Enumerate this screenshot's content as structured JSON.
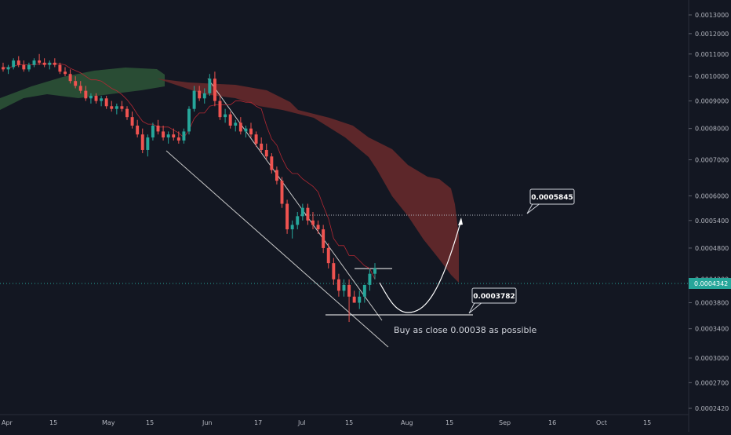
{
  "chart_data": {
    "type": "candlestick",
    "title": "",
    "y_scale": "log",
    "y_ticks": [
      "0.0013000",
      "0.0012000",
      "0.0011000",
      "0.0010000",
      "0.0009000",
      "0.0008000",
      "0.0007000",
      "0.0006000",
      "0.0005400",
      "0.0004800",
      "0.0004200",
      "0.0003800",
      "0.0003400",
      "0.0003000",
      "0.0002700",
      "0.0002420"
    ],
    "x_ticks": [
      "Apr",
      "15",
      "May",
      "15",
      "Jun",
      "17",
      "Jul",
      "15",
      "Aug",
      "15",
      "Sep",
      "16",
      "Oct",
      "15"
    ],
    "last_price": "0.0004342",
    "ohlc": [
      [
        0.00104,
        0.00106,
        0.00102,
        0.00103
      ],
      [
        0.00103,
        0.00105,
        0.00101,
        0.00104
      ],
      [
        0.00104,
        0.00108,
        0.00103,
        0.00107
      ],
      [
        0.00107,
        0.00109,
        0.00104,
        0.00105
      ],
      [
        0.00105,
        0.00107,
        0.00102,
        0.00103
      ],
      [
        0.00103,
        0.00106,
        0.00102,
        0.00105
      ],
      [
        0.00105,
        0.00108,
        0.00104,
        0.00107
      ],
      [
        0.00107,
        0.0011,
        0.00105,
        0.00106
      ],
      [
        0.00106,
        0.00108,
        0.00104,
        0.00105
      ],
      [
        0.00105,
        0.00107,
        0.00103,
        0.00106
      ],
      [
        0.00106,
        0.00108,
        0.00104,
        0.00105
      ],
      [
        0.00105,
        0.00106,
        0.00101,
        0.00102
      ],
      [
        0.00102,
        0.00104,
        0.001,
        0.00101
      ],
      [
        0.00101,
        0.00103,
        0.00097,
        0.00098
      ],
      [
        0.00098,
        0.001,
        0.00095,
        0.00096
      ],
      [
        0.00096,
        0.00098,
        0.00093,
        0.00094
      ],
      [
        0.00094,
        0.00096,
        0.0009,
        0.00091
      ],
      [
        0.00091,
        0.00093,
        0.00089,
        0.00092
      ],
      [
        0.00092,
        0.00093,
        0.00089,
        0.0009
      ],
      [
        0.0009,
        0.00092,
        0.00088,
        0.00091
      ],
      [
        0.00091,
        0.00092,
        0.00087,
        0.00088
      ],
      [
        0.00088,
        0.0009,
        0.00086,
        0.00087
      ],
      [
        0.00087,
        0.00089,
        0.00085,
        0.00088
      ],
      [
        0.00088,
        0.0009,
        0.00086,
        0.00087
      ],
      [
        0.00087,
        0.00088,
        0.00083,
        0.00084
      ],
      [
        0.00084,
        0.00086,
        0.0008,
        0.00081
      ],
      [
        0.00081,
        0.00083,
        0.00077,
        0.00078
      ],
      [
        0.00078,
        0.0008,
        0.00072,
        0.00073
      ],
      [
        0.00073,
        0.00078,
        0.00071,
        0.00077
      ],
      [
        0.00077,
        0.00082,
        0.00076,
        0.00081
      ],
      [
        0.00081,
        0.00083,
        0.00078,
        0.00079
      ],
      [
        0.00079,
        0.00081,
        0.00076,
        0.00077
      ],
      [
        0.00077,
        0.00079,
        0.00075,
        0.00078
      ],
      [
        0.00078,
        0.0008,
        0.00076,
        0.00077
      ],
      [
        0.00077,
        0.00079,
        0.00075,
        0.00076
      ],
      [
        0.00076,
        0.0008,
        0.00075,
        0.00079
      ],
      [
        0.00079,
        0.00088,
        0.00078,
        0.00087
      ],
      [
        0.00087,
        0.00096,
        0.00086,
        0.00094
      ],
      [
        0.00094,
        0.00096,
        0.0009,
        0.00091
      ],
      [
        0.00091,
        0.00095,
        0.00089,
        0.00093
      ],
      [
        0.00093,
        0.00101,
        0.00092,
        0.00099
      ],
      [
        0.00099,
        0.00102,
        0.00088,
        0.0009
      ],
      [
        0.0009,
        0.00092,
        0.00083,
        0.00084
      ],
      [
        0.00084,
        0.00087,
        0.00082,
        0.00085
      ],
      [
        0.00085,
        0.00086,
        0.0008,
        0.00081
      ],
      [
        0.00081,
        0.00083,
        0.00079,
        0.00082
      ],
      [
        0.00082,
        0.00084,
        0.00078,
        0.00079
      ],
      [
        0.00079,
        0.00081,
        0.00077,
        0.0008
      ],
      [
        0.0008,
        0.00082,
        0.00077,
        0.00078
      ],
      [
        0.00078,
        0.00079,
        0.00074,
        0.00075
      ],
      [
        0.00075,
        0.00077,
        0.00072,
        0.00073
      ],
      [
        0.00073,
        0.00075,
        0.0007,
        0.00071
      ],
      [
        0.00071,
        0.00072,
        0.00066,
        0.00067
      ],
      [
        0.00067,
        0.00068,
        0.00063,
        0.00064
      ],
      [
        0.00064,
        0.00065,
        0.00057,
        0.00058
      ],
      [
        0.00058,
        0.00059,
        0.00051,
        0.00052
      ],
      [
        0.00052,
        0.00054,
        0.0005,
        0.00053
      ],
      [
        0.00053,
        0.00056,
        0.00052,
        0.00055
      ],
      [
        0.00055,
        0.00058,
        0.00054,
        0.00057
      ],
      [
        0.00057,
        0.00058,
        0.00053,
        0.00054
      ],
      [
        0.00054,
        0.00056,
        0.00052,
        0.00053
      ],
      [
        0.00053,
        0.00054,
        0.00051,
        0.00052
      ],
      [
        0.00052,
        0.00053,
        0.00047,
        0.00048
      ],
      [
        0.00048,
        0.00049,
        0.00044,
        0.00045
      ],
      [
        0.00045,
        0.00046,
        0.00041,
        0.00042
      ],
      [
        0.00042,
        0.00043,
        0.00039,
        0.0004
      ],
      [
        0.0004,
        0.00042,
        0.00039,
        0.00041
      ],
      [
        0.00041,
        0.00042,
        0.00035,
        0.00039
      ],
      [
        0.00039,
        0.0004,
        0.00038,
        0.00038
      ],
      [
        0.00038,
        0.0004,
        0.00037,
        0.00039
      ],
      [
        0.00039,
        0.00041,
        0.00038,
        0.00041
      ],
      [
        0.00041,
        0.00044,
        0.0004,
        0.00043
      ],
      [
        0.00043,
        0.00045,
        0.00042,
        0.00044
      ]
    ],
    "annotations": {
      "target_label": "0.0005845",
      "support_label": "0.0003782",
      "note": "Buy as close 0.00038 as possible"
    }
  },
  "colors": {
    "background": "#131722",
    "up": "#26a69a",
    "down": "#ef5350",
    "cloud_red": "#6b2a2c",
    "cloud_green": "#2f5a3a",
    "text": "#b2b5be",
    "price_line": "#26a69a"
  }
}
